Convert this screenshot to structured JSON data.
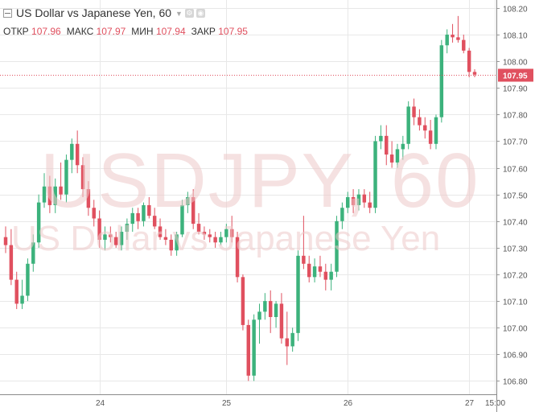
{
  "header": {
    "title": "US Dollar vs Japanese Yen, 60",
    "ohlc": [
      {
        "label": "ОТКР",
        "value": "107.96"
      },
      {
        "label": "МАКС",
        "value": "107.97"
      },
      {
        "label": "МИН",
        "value": "107.94"
      },
      {
        "label": "ЗАКР",
        "value": "107.95"
      }
    ]
  },
  "watermark": {
    "symbol": "USDJPY, 60",
    "description": "US Dollar vs Japanese Yen"
  },
  "colors": {
    "up": "#26a69a",
    "bullish": "#3cb27c",
    "bearish": "#e0505f",
    "price_line": "#e0505f",
    "grid": "#e8e8e8"
  },
  "chart_data": {
    "type": "candlestick",
    "symbol": "USDJPY",
    "timeframe": "60",
    "last_price": "107.95",
    "y_ticks": [
      "106.80",
      "106.90",
      "107.00",
      "107.10",
      "107.20",
      "107.30",
      "107.40",
      "107.50",
      "107.60",
      "107.70",
      "107.80",
      "107.90",
      "108.00",
      "108.10",
      "108.20"
    ],
    "ylim": [
      106.75,
      108.23
    ],
    "x_ticks": [
      "24",
      "25",
      "26",
      "27",
      "15:00"
    ],
    "grid": true,
    "candles": [
      [
        107.34,
        107.38,
        107.28,
        107.31
      ],
      [
        107.31,
        107.37,
        107.16,
        107.18
      ],
      [
        107.18,
        107.21,
        107.07,
        107.09
      ],
      [
        107.09,
        107.18,
        107.07,
        107.12
      ],
      [
        107.12,
        107.26,
        107.1,
        107.24
      ],
      [
        107.24,
        107.35,
        107.21,
        107.32
      ],
      [
        107.32,
        107.5,
        107.3,
        107.47
      ],
      [
        107.47,
        107.58,
        107.45,
        107.53
      ],
      [
        107.53,
        107.57,
        107.43,
        107.46
      ],
      [
        107.46,
        107.56,
        107.43,
        107.53
      ],
      [
        107.53,
        107.62,
        107.48,
        107.5
      ],
      [
        107.5,
        107.65,
        107.47,
        107.63
      ],
      [
        107.63,
        107.71,
        107.58,
        107.69
      ],
      [
        107.69,
        107.74,
        107.58,
        107.61
      ],
      [
        107.61,
        107.64,
        107.49,
        107.52
      ],
      [
        107.52,
        107.55,
        107.42,
        107.45
      ],
      [
        107.45,
        107.48,
        107.38,
        107.41
      ],
      [
        107.41,
        107.44,
        107.3,
        107.33
      ],
      [
        107.33,
        107.38,
        107.29,
        107.35
      ],
      [
        107.35,
        107.38,
        107.32,
        107.34
      ],
      [
        107.34,
        107.36,
        107.3,
        107.31
      ],
      [
        107.31,
        107.38,
        107.29,
        107.36
      ],
      [
        107.36,
        107.41,
        107.33,
        107.39
      ],
      [
        107.39,
        107.45,
        107.36,
        107.43
      ],
      [
        107.43,
        107.45,
        107.37,
        107.4
      ],
      [
        107.4,
        107.47,
        107.38,
        107.46
      ],
      [
        107.46,
        107.49,
        107.41,
        107.42
      ],
      [
        107.42,
        107.45,
        107.37,
        107.38
      ],
      [
        107.38,
        107.41,
        107.33,
        107.34
      ],
      [
        107.34,
        107.37,
        107.31,
        107.33
      ],
      [
        107.33,
        107.35,
        107.27,
        107.29
      ],
      [
        107.29,
        107.36,
        107.27,
        107.35
      ],
      [
        107.35,
        107.48,
        107.34,
        107.46
      ],
      [
        107.46,
        107.51,
        107.43,
        107.49
      ],
      [
        107.49,
        107.52,
        107.37,
        107.39
      ],
      [
        107.39,
        107.43,
        107.35,
        107.36
      ],
      [
        107.36,
        107.38,
        107.33,
        107.35
      ],
      [
        107.35,
        107.37,
        107.32,
        107.34
      ],
      [
        107.34,
        107.36,
        107.3,
        107.32
      ],
      [
        107.32,
        107.36,
        107.31,
        107.34
      ],
      [
        107.34,
        107.39,
        107.32,
        107.37
      ],
      [
        107.37,
        107.42,
        107.32,
        107.34
      ],
      [
        107.34,
        107.36,
        107.17,
        107.19
      ],
      [
        107.19,
        107.2,
        106.99,
        107.01
      ],
      [
        107.01,
        107.03,
        106.8,
        106.82
      ],
      [
        106.82,
        107.05,
        106.8,
        107.03
      ],
      [
        107.03,
        107.09,
        106.94,
        107.06
      ],
      [
        107.06,
        107.13,
        107.03,
        107.1
      ],
      [
        107.1,
        107.14,
        106.98,
        107.04
      ],
      [
        107.04,
        107.1,
        107.0,
        107.09
      ],
      [
        107.09,
        107.13,
        106.94,
        106.96
      ],
      [
        106.96,
        107.06,
        106.86,
        106.93
      ],
      [
        106.93,
        107.0,
        106.91,
        106.98
      ],
      [
        106.98,
        107.29,
        106.95,
        107.27
      ],
      [
        107.27,
        107.42,
        107.22,
        107.24
      ],
      [
        107.24,
        107.27,
        107.17,
        107.19
      ],
      [
        107.19,
        107.26,
        107.17,
        107.23
      ],
      [
        107.23,
        107.27,
        107.19,
        107.21
      ],
      [
        107.21,
        107.24,
        107.14,
        107.18
      ],
      [
        107.18,
        107.24,
        107.14,
        107.21
      ],
      [
        107.21,
        107.42,
        107.19,
        107.4
      ],
      [
        107.4,
        107.47,
        107.37,
        107.45
      ],
      [
        107.45,
        107.51,
        107.43,
        107.49
      ],
      [
        107.49,
        107.52,
        107.43,
        107.46
      ],
      [
        107.46,
        107.52,
        107.44,
        107.5
      ],
      [
        107.5,
        107.52,
        107.45,
        107.47
      ],
      [
        107.47,
        107.51,
        107.43,
        107.45
      ],
      [
        107.45,
        107.72,
        107.43,
        107.7
      ],
      [
        107.7,
        107.76,
        107.67,
        107.72
      ],
      [
        107.72,
        107.76,
        107.61,
        107.65
      ],
      [
        107.65,
        107.7,
        107.6,
        107.62
      ],
      [
        107.62,
        107.69,
        107.6,
        107.67
      ],
      [
        107.67,
        107.72,
        107.63,
        107.69
      ],
      [
        107.69,
        107.85,
        107.67,
        107.83
      ],
      [
        107.83,
        107.86,
        107.76,
        107.79
      ],
      [
        107.79,
        107.82,
        107.74,
        107.76
      ],
      [
        107.76,
        107.79,
        107.71,
        107.74
      ],
      [
        107.74,
        107.78,
        107.67,
        107.69
      ],
      [
        107.69,
        107.8,
        107.67,
        107.79
      ],
      [
        107.79,
        108.08,
        107.77,
        108.06
      ],
      [
        108.06,
        108.12,
        108.03,
        108.1
      ],
      [
        108.1,
        108.14,
        108.07,
        108.09
      ],
      [
        108.09,
        108.17,
        108.07,
        108.08
      ],
      [
        108.08,
        108.1,
        108.03,
        108.04
      ],
      [
        108.04,
        108.05,
        107.94,
        107.96
      ],
      [
        107.96,
        107.97,
        107.94,
        107.95
      ]
    ]
  }
}
